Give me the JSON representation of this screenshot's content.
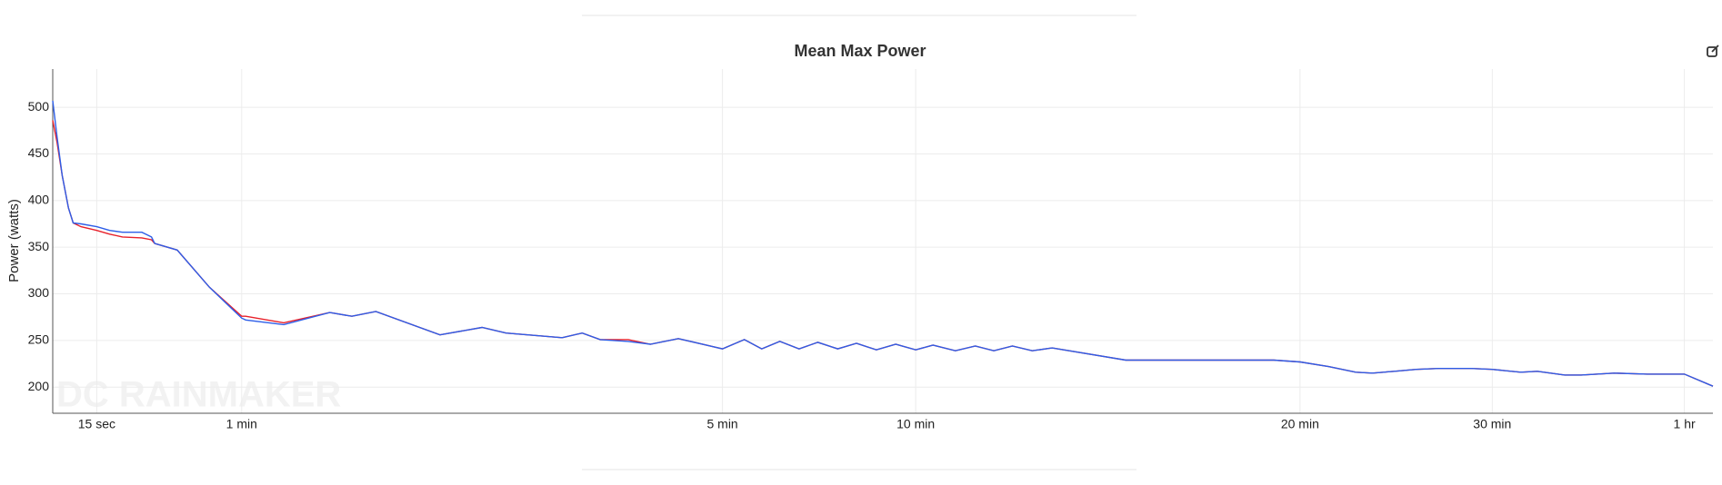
{
  "chart_data": {
    "type": "line",
    "title": "Mean Max Power",
    "ylabel": "Power (watts)",
    "watermark": "DC RAINMAKER",
    "x": [
      1,
      2.4,
      4,
      6,
      7.5,
      10,
      15,
      19,
      23,
      29,
      32,
      33,
      40,
      50,
      60,
      62,
      81,
      104,
      115,
      127,
      159,
      180,
      192,
      220,
      230,
      239,
      253,
      264,
      278,
      300,
      334,
      361,
      389,
      419,
      448,
      479,
      508,
      539,
      569,
      600,
      627,
      662,
      693,
      722,
      751,
      782,
      813,
      928,
      971,
      1057,
      1159,
      1200,
      1289,
      1374,
      1426,
      1495,
      1563,
      1632,
      1735,
      1800,
      2067,
      2222,
      2479,
      2633,
      2942,
      3251,
      3600,
      3870
    ],
    "series": [
      {
        "name": "Red",
        "color": "#e8202a",
        "values": [
          486,
          462,
          427,
          392,
          376,
          372,
          368,
          364,
          361,
          360,
          358,
          354,
          347,
          307,
          276,
          276,
          269,
          280,
          276,
          281,
          256,
          264,
          258,
          253,
          258,
          251,
          251,
          246,
          252,
          241,
          251,
          241,
          249,
          241,
          248,
          241,
          247,
          240,
          246,
          240,
          245,
          239,
          244,
          239,
          244,
          239,
          242,
          229,
          229,
          229,
          229,
          227,
          222,
          216,
          215,
          217,
          219,
          220,
          220,
          219,
          216,
          217,
          213,
          213,
          215,
          214,
          214,
          201
        ]
      },
      {
        "name": "Blue",
        "color": "#2d5ee8",
        "values": [
          507,
          468,
          427,
          392,
          376,
          375,
          372,
          368,
          366,
          366,
          361,
          354,
          347,
          307,
          274,
          272,
          267,
          280,
          276,
          281,
          256,
          264,
          258,
          253,
          258,
          251,
          249,
          246,
          252,
          241,
          251,
          241,
          249,
          241,
          248,
          241,
          247,
          240,
          246,
          240,
          245,
          239,
          244,
          239,
          244,
          239,
          242,
          229,
          229,
          229,
          229,
          227,
          222,
          216,
          215,
          217,
          219,
          220,
          220,
          219,
          216,
          217,
          213,
          213,
          215,
          214,
          214,
          201
        ]
      }
    ],
    "xlim": [
      1,
      3870
    ],
    "xticks": [
      {
        "value": 15,
        "label": "15 sec"
      },
      {
        "value": 60,
        "label": "1 min"
      },
      {
        "value": 300,
        "label": "5 min"
      },
      {
        "value": 600,
        "label": "10 min"
      },
      {
        "value": 1200,
        "label": "20 min"
      },
      {
        "value": 1800,
        "label": "30 min"
      },
      {
        "value": 3600,
        "label": "1 hr"
      }
    ],
    "ylim": [
      172,
      541
    ],
    "yticks": [
      200,
      250,
      300,
      350,
      400,
      450,
      500
    ],
    "grid": true
  }
}
